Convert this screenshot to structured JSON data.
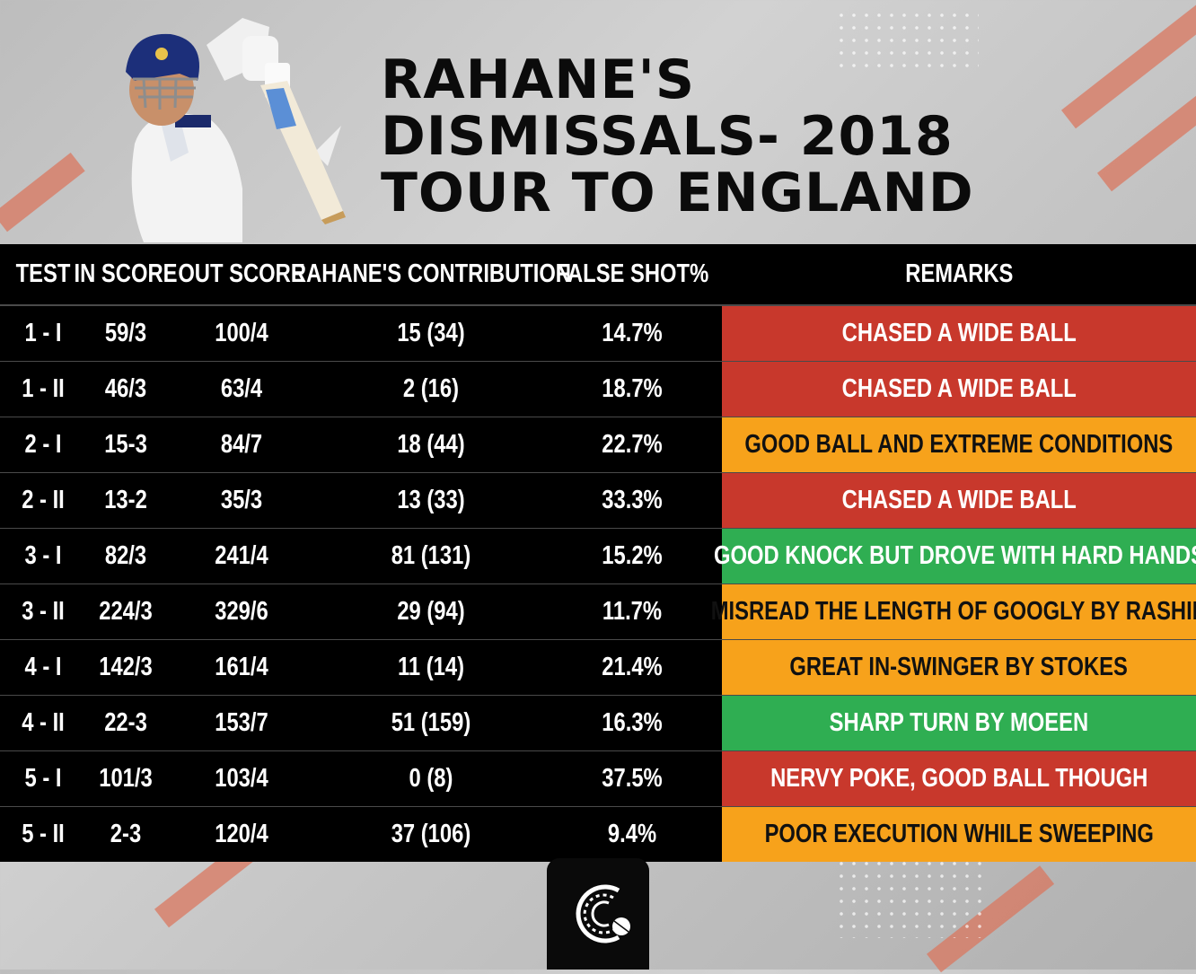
{
  "title_lines": [
    "RAHANE'S",
    "DISMISSALS- 2018",
    "TOUR TO ENGLAND"
  ],
  "colors": {
    "red": "#c8382c",
    "orange": "#f7a21b",
    "green": "#2fae52",
    "table_bg": "#000000",
    "title": "#0b0b0b"
  },
  "table": {
    "headers": {
      "test": "TEST",
      "in_score": "IN SCORE",
      "out_score": "OUT SCORE",
      "contribution": "RAHANE'S CONTRIBUTION",
      "false_shot": "FALSE SHOT%",
      "remarks": "REMARKS"
    },
    "rows": [
      {
        "test": "1 - I",
        "in_score": "59/3",
        "out_score": "100/4",
        "contribution": "15 (34)",
        "false_shot": "14.7%",
        "remark": "CHASED A WIDE BALL",
        "tone": "red"
      },
      {
        "test": "1 - II",
        "in_score": "46/3",
        "out_score": "63/4",
        "contribution": "2 (16)",
        "false_shot": "18.7%",
        "remark": "CHASED A WIDE BALL",
        "tone": "red"
      },
      {
        "test": "2 - I",
        "in_score": "15-3",
        "out_score": "84/7",
        "contribution": "18 (44)",
        "false_shot": "22.7%",
        "remark": "GOOD BALL AND EXTREME CONDITIONS",
        "tone": "orange"
      },
      {
        "test": "2 - II",
        "in_score": "13-2",
        "out_score": "35/3",
        "contribution": "13 (33)",
        "false_shot": "33.3%",
        "remark": "CHASED A WIDE BALL",
        "tone": "red"
      },
      {
        "test": "3 - I",
        "in_score": "82/3",
        "out_score": "241/4",
        "contribution": "81 (131)",
        "false_shot": "15.2%",
        "remark": "GOOD KNOCK BUT DROVE WITH HARD HANDS",
        "tone": "green"
      },
      {
        "test": "3 - II",
        "in_score": "224/3",
        "out_score": "329/6",
        "contribution": "29 (94)",
        "false_shot": "11.7%",
        "remark": "MISREAD THE LENGTH OF GOOGLY BY RASHID",
        "tone": "orange"
      },
      {
        "test": "4 - I",
        "in_score": "142/3",
        "out_score": "161/4",
        "contribution": "11 (14)",
        "false_shot": "21.4%",
        "remark": "GREAT IN-SWINGER BY STOKES",
        "tone": "orange"
      },
      {
        "test": "4 - II",
        "in_score": "22-3",
        "out_score": "153/7",
        "contribution": "51 (159)",
        "false_shot": "16.3%",
        "remark": "SHARP TURN BY MOEEN",
        "tone": "green"
      },
      {
        "test": "5 - I",
        "in_score": "101/3",
        "out_score": "103/4",
        "contribution": "0 (8)",
        "false_shot": "37.5%",
        "remark": "NERVY POKE, GOOD BALL THOUGH",
        "tone": "red"
      },
      {
        "test": "5 - II",
        "in_score": "2-3",
        "out_score": "120/4",
        "contribution": "37 (106)",
        "false_shot": "9.4%",
        "remark": "POOR EXECUTION WHILE SWEEPING",
        "tone": "orange"
      }
    ]
  },
  "icons": {
    "player": "batsman-illustration",
    "logo": "cricket-ball-logo-icon"
  }
}
